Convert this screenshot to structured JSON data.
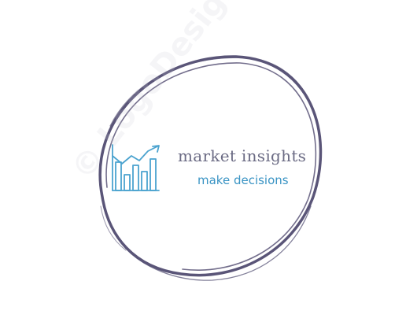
{
  "logo": {
    "brand_name": "market insights",
    "tagline": "make decisions",
    "watermark": "© LogoDesign.AI",
    "icon": "bar-chart-growth-icon",
    "colors": {
      "ring": "#5a5578",
      "brand_text": "#6b6b84",
      "tagline_text": "#3a94c4",
      "icon": "#4ba3cf",
      "background": "#ffffff"
    }
  }
}
